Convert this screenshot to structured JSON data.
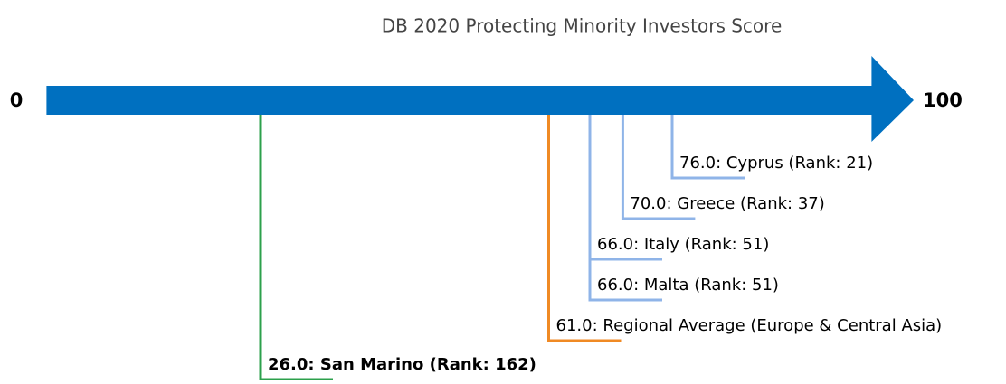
{
  "chart_data": {
    "type": "numberline",
    "title": "DB 2020 Protecting Minority Investors Score",
    "xlim": [
      0,
      100
    ],
    "xticks": [
      0,
      100
    ],
    "axis_color": "#0070c0",
    "markers": [
      {
        "value": 76,
        "label": "76.0: Cyprus (Rank: 21)",
        "color": "#8fb4e8",
        "bold": false
      },
      {
        "value": 70,
        "label": "70.0: Greece (Rank: 37)",
        "color": "#8fb4e8",
        "bold": false
      },
      {
        "value": 66,
        "label": "66.0: Italy (Rank: 51)",
        "color": "#8fb4e8",
        "bold": false
      },
      {
        "value": 66,
        "label": "66.0: Malta (Rank: 51)",
        "color": "#8fb4e8",
        "bold": false
      },
      {
        "value": 61,
        "label": "61.0: Regional Average (Europe & Central Asia)",
        "color": "#f08a24",
        "bold": false
      },
      {
        "value": 26,
        "label": "26.0: San Marino (Rank: 162)",
        "color": "#2ca04c",
        "bold": true
      }
    ]
  }
}
